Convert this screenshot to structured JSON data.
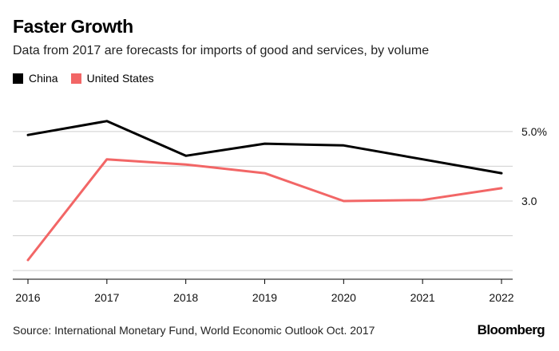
{
  "chart_data": {
    "type": "line",
    "title": "Faster Growth",
    "subtitle": "Data from 2017 are forecasts for imports of good and services, by volume",
    "x": [
      2016,
      2017,
      2018,
      2019,
      2020,
      2021,
      2022
    ],
    "series": [
      {
        "name": "China",
        "color": "#000000",
        "values": [
          4.9,
          5.3,
          4.3,
          4.65,
          4.6,
          4.2,
          3.8
        ]
      },
      {
        "name": "United States",
        "color": "#f26666",
        "values": [
          1.3,
          4.2,
          4.05,
          3.8,
          3.0,
          3.03,
          3.37
        ]
      }
    ],
    "y_ticks": [
      {
        "value": 5.0,
        "label": "5.0%"
      },
      {
        "value": 3.0,
        "label": "3.0"
      }
    ],
    "y_gridlines": [
      1.0,
      2.0,
      3.0,
      4.0,
      5.0
    ],
    "ylim": [
      0.75,
      5.8
    ],
    "xlim": [
      2016,
      2022
    ],
    "grid": true,
    "legend_position": "top-left",
    "source": "Source: International Monetary Fund, World Economic Outlook Oct. 2017",
    "brand": "Bloomberg"
  }
}
